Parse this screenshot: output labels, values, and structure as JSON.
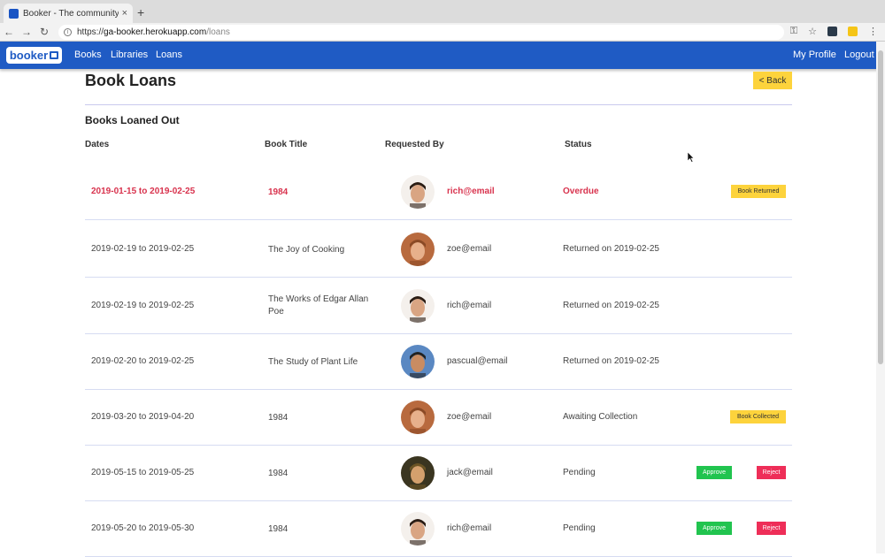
{
  "browser": {
    "tab_title": "Booker - The community librar",
    "url_prefix": "https://",
    "url_host": "ga-booker.herokuapp.com",
    "url_path": "/loans",
    "tab_close_glyph": "×",
    "new_tab_glyph": "+",
    "back_glyph": "←",
    "forward_glyph": "→",
    "reload_glyph": "↻",
    "key_glyph": "⚿",
    "star_glyph": "☆",
    "menu_glyph": "⋮",
    "info_glyph": "i"
  },
  "navbar": {
    "logo_text": "booker",
    "links": {
      "books": "Books",
      "libraries": "Libraries",
      "loans": "Loans"
    },
    "right_links": {
      "profile": "My Profile",
      "logout": "Logout"
    }
  },
  "page": {
    "title": "Book Loans",
    "back_label": "< Back",
    "section_title": "Books Loaned Out",
    "columns": {
      "dates": "Dates",
      "title": "Book Title",
      "requested_by": "Requested By",
      "status": "Status"
    }
  },
  "loans": [
    {
      "dates": "2019-01-15 to 2019-02-25",
      "title": "1984",
      "email": "rich@email",
      "status": "Overdue",
      "action1": "Book Returned",
      "action2": ""
    },
    {
      "dates": "2019-02-19 to 2019-02-25",
      "title": "The Joy of Cooking",
      "email": "zoe@email",
      "status": "Returned on 2019-02-25",
      "action1": "",
      "action2": ""
    },
    {
      "dates": "2019-02-19 to 2019-02-25",
      "title": "The Works of Edgar Allan Poe",
      "email": "rich@email",
      "status": "Returned on 2019-02-25",
      "action1": "",
      "action2": ""
    },
    {
      "dates": "2019-02-20 to 2019-02-25",
      "title": "The Study of Plant Life",
      "email": "pascual@email",
      "status": "Returned on 2019-02-25",
      "action1": "",
      "action2": ""
    },
    {
      "dates": "2019-03-20 to 2019-04-20",
      "title": "1984",
      "email": "zoe@email",
      "status": "Awaiting Collection",
      "action1": "Book Collected",
      "action2": ""
    },
    {
      "dates": "2019-05-15 to 2019-05-25",
      "title": "1984",
      "email": "jack@email",
      "status": "Pending",
      "action1": "Approve",
      "action2": "Reject"
    },
    {
      "dates": "2019-05-20 to 2019-05-30",
      "title": "1984",
      "email": "rich@email",
      "status": "Pending",
      "action1": "Approve",
      "action2": "Reject"
    }
  ],
  "colors": {
    "navbar": "#1f5bc4",
    "overdue": "#d8324d",
    "yellow_button": "#fdd33c",
    "approve": "#21c44f",
    "reject": "#ee2e58"
  }
}
